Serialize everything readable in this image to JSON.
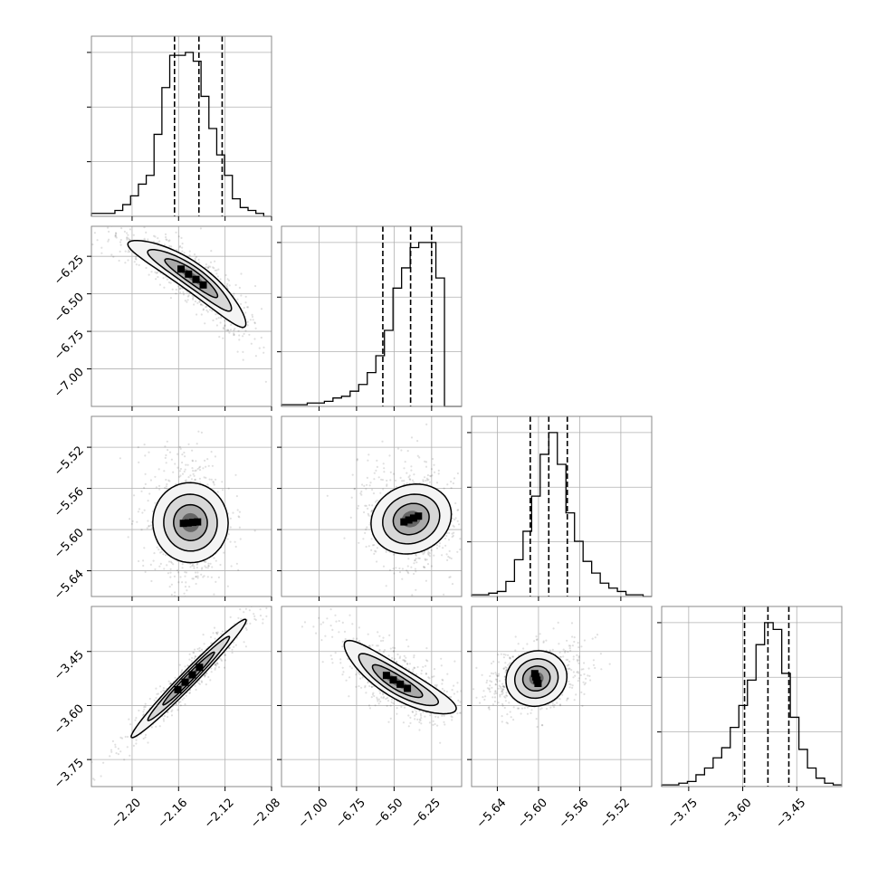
{
  "chart_data": {
    "type": "corner",
    "title": "",
    "parameters": [
      {
        "range": [
          -2.235,
          -2.08
        ],
        "ticks": [
          -2.2,
          -2.16,
          -2.12,
          -2.08
        ],
        "tick_labels": [
          "−2.20",
          "−2.16",
          "−2.12",
          "−2.08"
        ],
        "quantiles": [
          -2.1635,
          -2.1425,
          -2.1225
        ]
      },
      {
        "range": [
          -7.25,
          -6.05
        ],
        "ticks": [
          -7.0,
          -6.75,
          -6.5,
          -6.25
        ],
        "tick_labels": [
          "−7.00",
          "−6.75",
          "−6.50",
          "−6.25"
        ],
        "quantiles": [
          -6.575,
          -6.39,
          -6.25
        ]
      },
      {
        "range": [
          -5.665,
          -5.49
        ],
        "ticks": [
          -5.64,
          -5.6,
          -5.56,
          -5.52
        ],
        "tick_labels": [
          "−5.64",
          "−5.60",
          "−5.56",
          "−5.52"
        ],
        "quantiles": [
          -5.608,
          -5.59,
          -5.572
        ]
      },
      {
        "range": [
          -3.825,
          -3.325
        ],
        "ticks": [
          -3.75,
          -3.6,
          -3.45
        ],
        "tick_labels": [
          "−3.75",
          "−3.60",
          "−3.45"
        ],
        "quantiles": [
          -3.595,
          -3.53,
          -3.472
        ]
      }
    ],
    "histograms": [
      [
        1,
        1,
        1,
        2,
        4,
        7,
        11,
        14,
        28,
        44,
        55,
        55,
        56,
        53,
        41,
        30,
        21,
        14,
        6,
        3,
        2,
        1,
        0
      ],
      [
        1,
        1,
        1,
        2,
        2,
        3,
        5,
        6,
        9,
        13,
        20,
        30,
        45,
        70,
        82,
        94,
        97,
        97,
        76,
        0,
        0
      ],
      [
        1,
        1,
        2,
        3,
        9,
        22,
        39,
        60,
        85,
        98,
        79,
        50,
        33,
        21,
        14,
        8,
        5,
        3,
        1,
        1,
        0
      ],
      [
        1,
        1,
        2,
        3,
        7,
        11,
        17,
        23,
        35,
        48,
        63,
        84,
        97,
        93,
        67,
        41,
        22,
        11,
        5,
        2,
        1
      ]
    ],
    "grid": true,
    "tick_directions": {
      "x": "rotated",
      "y": "rotated"
    }
  }
}
